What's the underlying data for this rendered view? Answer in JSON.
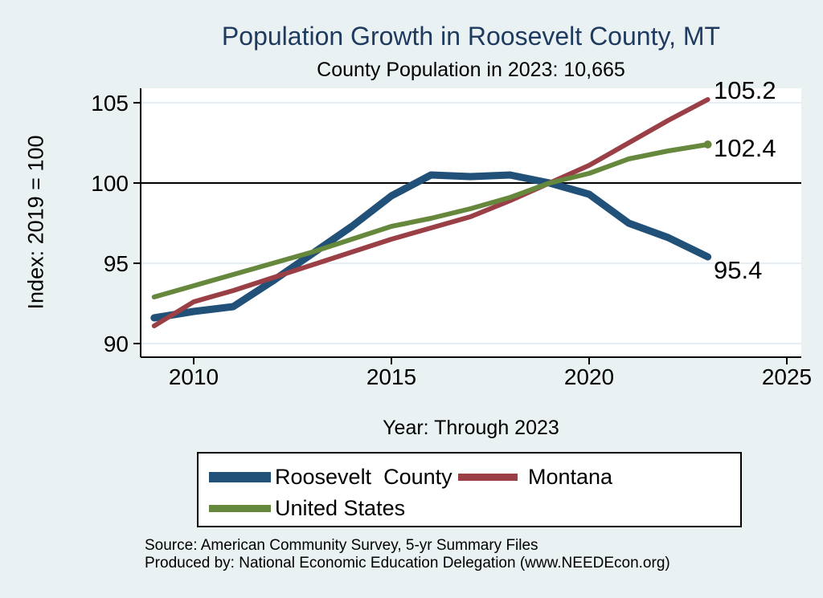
{
  "title": "Population Growth in Roosevelt County, MT",
  "subtitle": "County Population in 2023: 10,665",
  "colors": {
    "background": "#e9f1f3",
    "plot_background": "#ffffff",
    "title_text": "#1f3a5f",
    "gridline": "#dce9f0",
    "axis": "#000000",
    "reference_line": "#000000",
    "roosevelt_blue": "#215078",
    "montana_red": "#9a3f46",
    "us_green": "#66883c"
  },
  "chart_data": {
    "type": "line",
    "title": "Population Growth in Roosevelt County, MT",
    "subtitle": "County Population in 2023: 10,665",
    "xlabel": "Year: Through 2023",
    "ylabel": "Index: 2019 = 100",
    "x": [
      2009,
      2010,
      2011,
      2012,
      2013,
      2014,
      2015,
      2016,
      2017,
      2018,
      2019,
      2020,
      2021,
      2022,
      2023
    ],
    "series": [
      {
        "name": "Roosevelt  County",
        "color": "#215078",
        "stroke_width": 9,
        "values": [
          91.6,
          92.0,
          92.3,
          93.9,
          95.6,
          97.3,
          99.2,
          100.5,
          100.4,
          100.5,
          100.0,
          99.3,
          97.5,
          96.6,
          95.4
        ],
        "end_label": "95.4",
        "end_marker": false
      },
      {
        "name": "Montana",
        "color": "#9a3f46",
        "stroke_width": 6,
        "values": [
          91.1,
          92.6,
          93.3,
          94.1,
          94.9,
          95.7,
          96.5,
          97.2,
          97.9,
          98.9,
          100.0,
          101.1,
          102.5,
          103.9,
          105.2
        ],
        "end_label": "105.2",
        "end_marker": false
      },
      {
        "name": "United States",
        "color": "#66883c",
        "stroke_width": 6,
        "values": [
          92.9,
          93.6,
          94.3,
          95.0,
          95.7,
          96.5,
          97.3,
          97.8,
          98.4,
          99.1,
          100.0,
          100.6,
          101.5,
          102.0,
          102.4
        ],
        "end_label": "102.4",
        "end_marker": true
      }
    ],
    "x_ticks": [
      2010,
      2015,
      2020,
      2025
    ],
    "y_ticks": [
      90,
      95,
      100,
      105
    ],
    "x_range": [
      2008.7,
      2025.4
    ],
    "y_range": [
      89.2,
      105.9
    ],
    "reference_line_y": 100,
    "grid": true,
    "legend_position": "bottom"
  },
  "legend": {
    "items": [
      {
        "label": "Roosevelt  County",
        "color": "#215078"
      },
      {
        "label": "Montana",
        "color": "#9a3f46"
      },
      {
        "label": "United States",
        "color": "#66883c"
      }
    ]
  },
  "footer": {
    "source_line": "Source: American Community Survey, 5-yr Summary Files",
    "produced_line": "Produced by: National Economic Education Delegation (www.NEEDEcon.org)"
  }
}
